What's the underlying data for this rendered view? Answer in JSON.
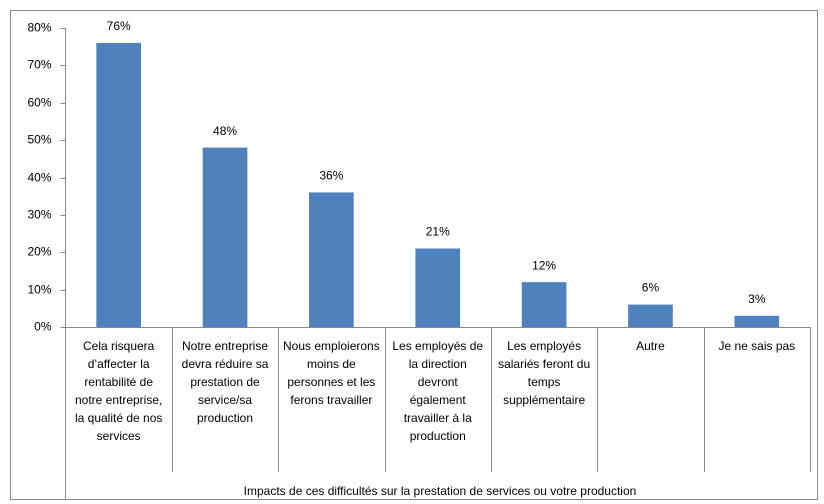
{
  "chart_data": {
    "type": "bar",
    "x_label": "Impacts de ces difficultés sur la prestation de services ou votre production",
    "categories": [
      "Cela risquera d’affecter la rentabilité de notre entreprise, la qualité de nos services",
      "Notre entreprise devra réduire sa prestation de service/sa production",
      "Nous emploierons moins de personnes et les ferons travailler",
      "Les employés de la direction devront également travailler à la production",
      "Les employés salariés feront du temps supplémentaire",
      "Autre",
      "Je ne sais pas"
    ],
    "values": [
      76,
      48,
      36,
      21,
      12,
      6,
      3
    ],
    "value_labels": [
      "76%",
      "48%",
      "36%",
      "21%",
      "12%",
      "6%",
      "3%"
    ],
    "color": "#4f81bd",
    "ylim": [
      0,
      80
    ],
    "yticks": [
      {
        "value": 0,
        "label": "0%"
      },
      {
        "value": 10,
        "label": "10%"
      },
      {
        "value": 20,
        "label": "20%"
      },
      {
        "value": 30,
        "label": "30%"
      },
      {
        "value": 40,
        "label": "40%"
      },
      {
        "value": 50,
        "label": "50%"
      },
      {
        "value": 60,
        "label": "60%"
      },
      {
        "value": 70,
        "label": "70%"
      },
      {
        "value": 80,
        "label": "80%"
      }
    ],
    "grid": false
  }
}
